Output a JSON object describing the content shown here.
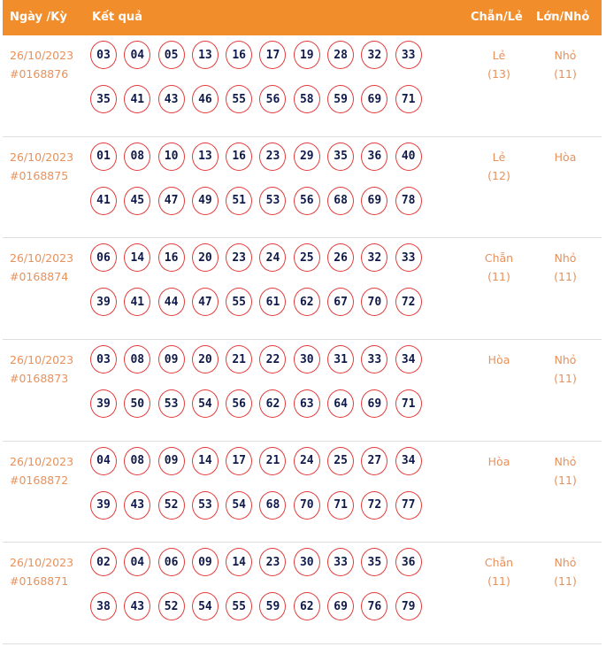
{
  "header": {
    "date": "Ngày /Kỳ",
    "result": "Kết quả",
    "chan_le": "Chẵn/Lẻ",
    "lon_nho": "Lớn/Nhỏ"
  },
  "rows": [
    {
      "date": "26/10/2023",
      "id": "#0168876",
      "numbers": [
        "03",
        "04",
        "05",
        "13",
        "16",
        "17",
        "19",
        "28",
        "32",
        "33",
        "35",
        "41",
        "43",
        "46",
        "55",
        "56",
        "58",
        "59",
        "69",
        "71"
      ],
      "chan_le": "Lẻ",
      "chan_le_count": "(13)",
      "lon_nho": "Nhỏ",
      "lon_nho_count": "(11)"
    },
    {
      "date": "26/10/2023",
      "id": "#0168875",
      "numbers": [
        "01",
        "08",
        "10",
        "13",
        "16",
        "23",
        "29",
        "35",
        "36",
        "40",
        "41",
        "45",
        "47",
        "49",
        "51",
        "53",
        "56",
        "68",
        "69",
        "78"
      ],
      "chan_le": "Lẻ",
      "chan_le_count": "(12)",
      "lon_nho": "Hòa",
      "lon_nho_count": ""
    },
    {
      "date": "26/10/2023",
      "id": "#0168874",
      "numbers": [
        "06",
        "14",
        "16",
        "20",
        "23",
        "24",
        "25",
        "26",
        "32",
        "33",
        "39",
        "41",
        "44",
        "47",
        "55",
        "61",
        "62",
        "67",
        "70",
        "72"
      ],
      "chan_le": "Chẵn",
      "chan_le_count": "(11)",
      "lon_nho": "Nhỏ",
      "lon_nho_count": "(11)"
    },
    {
      "date": "26/10/2023",
      "id": "#0168873",
      "numbers": [
        "03",
        "08",
        "09",
        "20",
        "21",
        "22",
        "30",
        "31",
        "33",
        "34",
        "39",
        "50",
        "53",
        "54",
        "56",
        "62",
        "63",
        "64",
        "69",
        "71"
      ],
      "chan_le": "Hòa",
      "chan_le_count": "",
      "lon_nho": "Nhỏ",
      "lon_nho_count": "(11)"
    },
    {
      "date": "26/10/2023",
      "id": "#0168872",
      "numbers": [
        "04",
        "08",
        "09",
        "14",
        "17",
        "21",
        "24",
        "25",
        "27",
        "34",
        "39",
        "43",
        "52",
        "53",
        "54",
        "68",
        "70",
        "71",
        "72",
        "77"
      ],
      "chan_le": "Hòa",
      "chan_le_count": "",
      "lon_nho": "Nhỏ",
      "lon_nho_count": "(11)"
    },
    {
      "date": "26/10/2023",
      "id": "#0168871",
      "numbers": [
        "02",
        "04",
        "06",
        "09",
        "14",
        "23",
        "30",
        "33",
        "35",
        "36",
        "38",
        "43",
        "52",
        "54",
        "55",
        "59",
        "62",
        "69",
        "76",
        "79"
      ],
      "chan_le": "Chẵn",
      "chan_le_count": "(11)",
      "lon_nho": "Nhỏ",
      "lon_nho_count": "(11)"
    }
  ],
  "colors": {
    "header": "#f28d2c",
    "ball_border": "#e23b3b",
    "ball_text": "#101a4a",
    "meta_text": "#e8915a"
  }
}
